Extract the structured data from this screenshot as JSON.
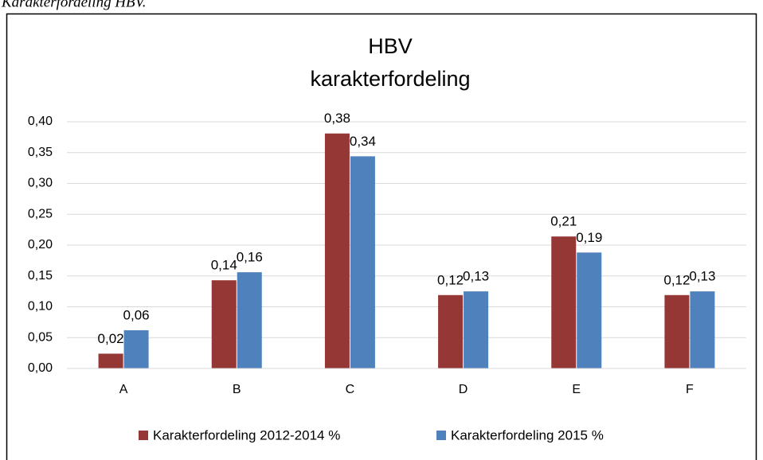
{
  "caption": "Karakterfordeling HBV.",
  "chart_data": {
    "type": "bar",
    "title": [
      "HBV",
      "karakterfordeling"
    ],
    "categories": [
      "A",
      "B",
      "C",
      "D",
      "E",
      "F"
    ],
    "series": [
      {
        "name": "Karakterfordeling 2012-2014 %",
        "color": "#953735",
        "values": [
          0.024,
          0.143,
          0.381,
          0.119,
          0.214,
          0.119
        ],
        "value_labels": [
          "0,02",
          "0,14",
          "0,38",
          "0,12",
          "0,21",
          "0,12"
        ]
      },
      {
        "name": "Karakterfordeling 2015 %",
        "color": "#4f81bd",
        "values": [
          0.062,
          0.156,
          0.344,
          0.125,
          0.188,
          0.125
        ],
        "value_labels": [
          "0,06",
          "0,16",
          "0,34",
          "0,13",
          "0,19",
          "0,13"
        ]
      }
    ],
    "ylim": [
      0,
      0.4
    ],
    "yticks": [
      {
        "value": 0,
        "label": "0,00"
      },
      {
        "value": 0.05,
        "label": "0,05"
      },
      {
        "value": 0.1,
        "label": "0,10"
      },
      {
        "value": 0.15,
        "label": "0,15"
      },
      {
        "value": 0.2,
        "label": "0,20"
      },
      {
        "value": 0.25,
        "label": "0,25"
      },
      {
        "value": 0.3,
        "label": "0,30"
      },
      {
        "value": 0.35,
        "label": "0,35"
      },
      {
        "value": 0.4,
        "label": "0,40"
      }
    ],
    "grid": true,
    "legend": "bottom"
  }
}
